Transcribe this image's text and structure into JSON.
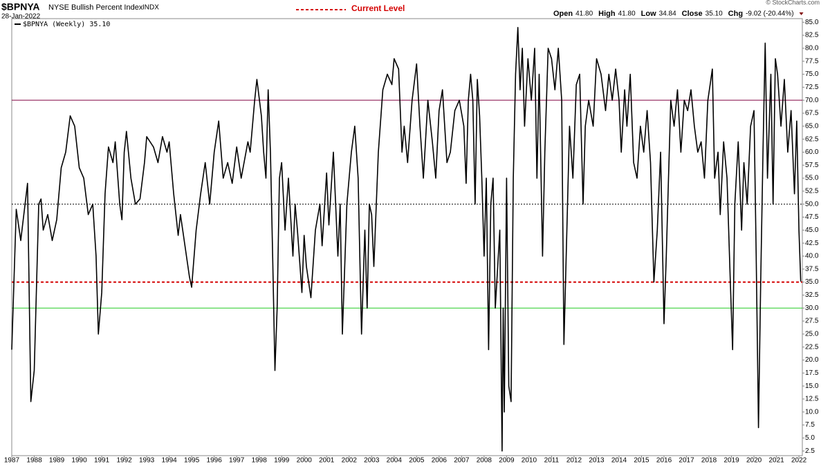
{
  "chart_data": {
    "type": "line",
    "title": "$BPNYA",
    "subtitle": "NYSE Bullish Percent Index",
    "exchange": "INDX",
    "date": "28-Jan-2022",
    "quote": [
      {
        "label": "Open",
        "value": "41.80"
      },
      {
        "label": "High",
        "value": "41.80"
      },
      {
        "label": "Low",
        "value": "34.84"
      },
      {
        "label": "Close",
        "value": "35.10"
      },
      {
        "label": "Chg",
        "value": "-9.02 (-20.44%)"
      }
    ],
    "credit": "© StockCharts.com",
    "reference_lines": [
      {
        "value": 70,
        "color": "#800040",
        "style": "solid"
      },
      {
        "value": 50,
        "color": "#000000",
        "style": "dotted"
      },
      {
        "value": 35,
        "color": "#d40000",
        "style": "dashed",
        "label": "Current Level"
      },
      {
        "value": 30,
        "color": "#22cc22",
        "style": "solid"
      }
    ],
    "xlim": [
      1987,
      2022.15
    ],
    "xticks": [
      1987,
      1988,
      1989,
      1990,
      1991,
      1992,
      1993,
      1994,
      1995,
      1996,
      1997,
      1998,
      1999,
      2000,
      2001,
      2002,
      2003,
      2004,
      2005,
      2006,
      2007,
      2008,
      2009,
      2010,
      2011,
      2012,
      2013,
      2014,
      2015,
      2016,
      2017,
      2018,
      2019,
      2020,
      2021,
      2022
    ],
    "ylim": [
      1.6,
      85.7
    ],
    "yticks": [
      {
        "value": 2.5,
        "label": "2.5"
      },
      {
        "value": 5,
        "label": "5.0"
      },
      {
        "value": 7.5,
        "label": "7.5"
      },
      {
        "value": 10,
        "label": "10.0"
      },
      {
        "value": 12.5,
        "label": "12.5"
      },
      {
        "value": 15,
        "label": "15.0"
      },
      {
        "value": 17.5,
        "label": "17.5"
      },
      {
        "value": 20,
        "label": "20.0"
      },
      {
        "value": 22.5,
        "label": "22.5"
      },
      {
        "value": 25,
        "label": "25.0"
      },
      {
        "value": 27.5,
        "label": "27.5"
      },
      {
        "value": 30,
        "label": "30.0"
      },
      {
        "value": 32.5,
        "label": "32.5"
      },
      {
        "value": 35,
        "label": "35.0"
      },
      {
        "value": 37.5,
        "label": "37.5"
      },
      {
        "value": 40,
        "label": "40.0"
      },
      {
        "value": 42.5,
        "label": "42.5"
      },
      {
        "value": 45,
        "label": "45.0"
      },
      {
        "value": 47.5,
        "label": "47.5"
      },
      {
        "value": 50,
        "label": "50.0"
      },
      {
        "value": 52.5,
        "label": "52.5"
      },
      {
        "value": 55,
        "label": "55.0"
      },
      {
        "value": 57.5,
        "label": "57.5"
      },
      {
        "value": 60,
        "label": "60.0"
      },
      {
        "value": 62.5,
        "label": "62.5"
      },
      {
        "value": 65,
        "label": "65.0"
      },
      {
        "value": 67.5,
        "label": "67.5"
      },
      {
        "value": 70,
        "label": "70.0"
      },
      {
        "value": 72.5,
        "label": "72.5"
      },
      {
        "value": 75,
        "label": "75.0"
      },
      {
        "value": 77.5,
        "label": "77.5"
      },
      {
        "value": 80,
        "label": "80.0"
      },
      {
        "value": 82.5,
        "label": "82.5"
      },
      {
        "value": 85,
        "label": "85.0"
      }
    ],
    "x": [
      1987.0,
      1987.2,
      1987.4,
      1987.7,
      1987.85,
      1988.0,
      1988.2,
      1988.3,
      1988.4,
      1988.6,
      1988.8,
      1989.0,
      1989.2,
      1989.4,
      1989.6,
      1989.8,
      1990.0,
      1990.2,
      1990.4,
      1990.6,
      1990.75,
      1990.85,
      1991.0,
      1991.15,
      1991.3,
      1991.5,
      1991.6,
      1991.8,
      1991.9,
      1992.0,
      1992.1,
      1992.3,
      1992.5,
      1992.7,
      1992.9,
      1993.0,
      1993.3,
      1993.5,
      1993.7,
      1993.9,
      1994.0,
      1994.2,
      1994.4,
      1994.5,
      1994.7,
      1994.9,
      1995.0,
      1995.2,
      1995.4,
      1995.6,
      1995.8,
      1996.0,
      1996.2,
      1996.4,
      1996.6,
      1996.8,
      1997.0,
      1997.2,
      1997.5,
      1997.6,
      1997.8,
      1997.9,
      1998.1,
      1998.2,
      1998.3,
      1998.4,
      1998.5,
      1998.6,
      1998.7,
      1998.8,
      1998.9,
      1999.0,
      1999.15,
      1999.3,
      1999.5,
      1999.6,
      1999.7,
      1999.9,
      2000.0,
      2000.1,
      2000.3,
      2000.5,
      2000.7,
      2000.8,
      2001.0,
      2001.1,
      2001.3,
      2001.5,
      2001.6,
      2001.7,
      2001.9,
      2002.1,
      2002.25,
      2002.4,
      2002.5,
      2002.55,
      2002.7,
      2002.8,
      2002.9,
      2003.0,
      2003.1,
      2003.3,
      2003.5,
      2003.7,
      2003.9,
      2004.0,
      2004.2,
      2004.35,
      2004.45,
      2004.6,
      2004.8,
      2005.0,
      2005.15,
      2005.3,
      2005.5,
      2005.7,
      2005.85,
      2006.0,
      2006.15,
      2006.35,
      2006.5,
      2006.7,
      2006.9,
      2007.1,
      2007.2,
      2007.3,
      2007.4,
      2007.5,
      2007.6,
      2007.7,
      2007.8,
      2007.9,
      2008.0,
      2008.1,
      2008.2,
      2008.3,
      2008.4,
      2008.5,
      2008.7,
      2008.8,
      2008.85,
      2008.9,
      2009.0,
      2009.1,
      2009.2,
      2009.3,
      2009.4,
      2009.5,
      2009.6,
      2009.7,
      2009.8,
      2009.95,
      2010.1,
      2010.25,
      2010.35,
      2010.45,
      2010.6,
      2010.7,
      2010.85,
      2011.0,
      2011.15,
      2011.3,
      2011.45,
      2011.55,
      2011.65,
      2011.8,
      2011.95,
      2012.1,
      2012.25,
      2012.4,
      2012.5,
      2012.65,
      2012.85,
      2013.0,
      2013.2,
      2013.4,
      2013.55,
      2013.7,
      2013.85,
      2014.0,
      2014.1,
      2014.25,
      2014.35,
      2014.5,
      2014.65,
      2014.8,
      2014.95,
      2015.1,
      2015.25,
      2015.4,
      2015.55,
      2015.7,
      2015.85,
      2016.0,
      2016.1,
      2016.2,
      2016.3,
      2016.45,
      2016.6,
      2016.75,
      2016.9,
      2017.05,
      2017.2,
      2017.35,
      2017.5,
      2017.65,
      2017.8,
      2017.95,
      2018.05,
      2018.15,
      2018.25,
      2018.4,
      2018.5,
      2018.65,
      2018.8,
      2018.95,
      2019.05,
      2019.15,
      2019.3,
      2019.45,
      2019.55,
      2019.7,
      2019.85,
      2020.0,
      2020.1,
      2020.2,
      2020.3,
      2020.4,
      2020.5,
      2020.6,
      2020.75,
      2020.85,
      2020.95,
      2021.05,
      2021.2,
      2021.35,
      2021.5,
      2021.65,
      2021.8,
      2021.9,
      2022.0,
      2022.08
    ],
    "series": [
      {
        "name": "$BPNYA (Weekly) 35.10",
        "color": "#000000",
        "values": [
          22,
          49,
          43,
          54,
          12,
          18,
          50,
          51,
          45,
          48,
          43,
          47,
          57,
          60,
          67,
          65,
          57,
          55,
          48,
          50,
          40,
          25,
          33,
          52,
          61,
          58,
          62,
          50,
          47,
          60,
          64,
          55,
          50,
          51,
          58,
          63,
          61,
          58,
          63,
          60,
          62,
          52,
          44,
          48,
          42,
          36,
          34,
          45,
          52,
          58,
          50,
          60,
          66,
          55,
          58,
          54,
          61,
          55,
          62,
          60,
          70,
          74,
          67,
          60,
          55,
          72,
          60,
          40,
          18,
          30,
          55,
          58,
          45,
          55,
          40,
          50,
          45,
          33,
          44,
          38,
          32,
          45,
          50,
          42,
          56,
          46,
          60,
          40,
          50,
          25,
          50,
          60,
          65,
          55,
          35,
          25,
          45,
          30,
          50,
          48,
          38,
          60,
          72,
          75,
          73,
          78,
          76,
          60,
          65,
          58,
          70,
          77,
          65,
          55,
          70,
          62,
          55,
          68,
          72,
          58,
          60,
          68,
          70,
          65,
          54,
          70,
          75,
          70,
          50,
          74,
          67,
          55,
          40,
          55,
          22,
          50,
          55,
          30,
          45,
          2.5,
          30,
          10,
          55,
          15,
          12,
          55,
          75,
          84,
          72,
          80,
          65,
          78,
          70,
          80,
          55,
          75,
          40,
          60,
          80,
          78,
          72,
          80,
          70,
          23,
          40,
          65,
          55,
          73,
          75,
          50,
          65,
          70,
          65,
          78,
          75,
          68,
          75,
          70,
          76,
          70,
          60,
          72,
          65,
          75,
          58,
          55,
          65,
          60,
          68,
          58,
          35,
          45,
          60,
          27,
          40,
          55,
          70,
          65,
          72,
          60,
          70,
          68,
          72,
          65,
          60,
          62,
          55,
          70,
          73,
          76,
          55,
          60,
          48,
          62,
          55,
          35,
          22,
          50,
          62,
          45,
          58,
          50,
          65,
          68,
          40,
          7,
          35,
          60,
          81,
          55,
          75,
          50,
          78,
          75,
          65,
          74,
          60,
          68,
          52,
          66,
          45,
          35.1
        ]
      }
    ]
  }
}
